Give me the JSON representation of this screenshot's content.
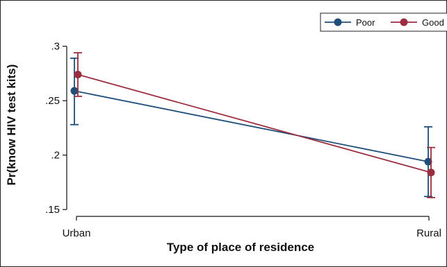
{
  "chart_data": {
    "type": "line",
    "title": "",
    "xlabel": "Type of place of residence",
    "ylabel": "Pr(know HIV test kits)",
    "categories": [
      "Urban",
      "Rural"
    ],
    "y_ticks": [
      ".15",
      ".2",
      ".25",
      ".3"
    ],
    "y_tick_values": [
      0.15,
      0.2,
      0.25,
      0.3
    ],
    "ylim": [
      0.145,
      0.31
    ],
    "grid": false,
    "legend_position": "top-right",
    "series": [
      {
        "name": "Poor",
        "color": "#1f4e79",
        "values": [
          0.259,
          0.194
        ],
        "ci_low": [
          0.228,
          0.162
        ],
        "ci_high": [
          0.289,
          0.226
        ]
      },
      {
        "name": "Good",
        "color": "#9b2d3f",
        "values": [
          0.274,
          0.184
        ],
        "ci_low": [
          0.254,
          0.161
        ],
        "ci_high": [
          0.294,
          0.207
        ]
      }
    ]
  }
}
